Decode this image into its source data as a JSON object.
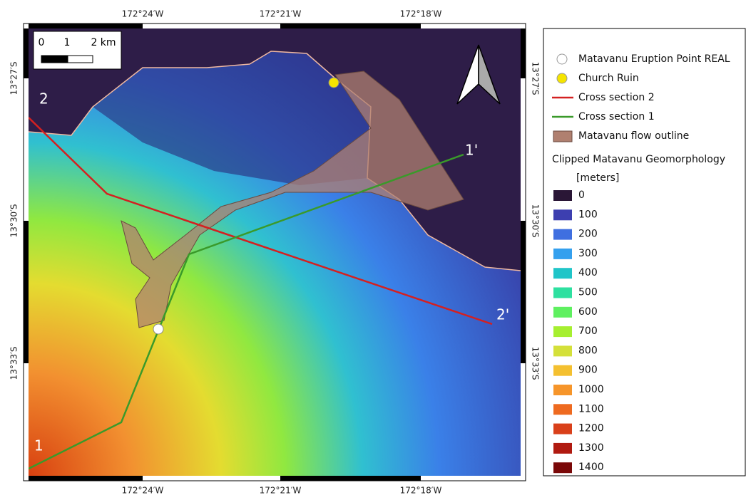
{
  "scale_bar": {
    "labels": [
      "0",
      "1",
      "2 km"
    ]
  },
  "graticule": {
    "longitudes": [
      "172°24′W",
      "172°21′W",
      "172°18′W"
    ],
    "latitudes": [
      "13°27′S",
      "13°30′S",
      "13°33′S"
    ]
  },
  "map_labels": [
    "2",
    "1'",
    "2'",
    "1"
  ],
  "legend": {
    "items": [
      "Matavanu Eruption Point REAL",
      "Church Ruin",
      "Cross section 2",
      "Cross section 1",
      "Matavanu flow outline"
    ],
    "ramp_title": "Clipped Matavanu Geomorphology",
    "ramp_unit": "[meters]",
    "ramp": [
      {
        "label": "0",
        "color": "#2a1636"
      },
      {
        "label": "100",
        "color": "#3d3fb0"
      },
      {
        "label": "200",
        "color": "#3f6fe0"
      },
      {
        "label": "300",
        "color": "#34a0ee"
      },
      {
        "label": "400",
        "color": "#20c5c8"
      },
      {
        "label": "500",
        "color": "#2ee0a0"
      },
      {
        "label": "600",
        "color": "#5ff060"
      },
      {
        "label": "700",
        "color": "#a6ef30"
      },
      {
        "label": "800",
        "color": "#d4e03a"
      },
      {
        "label": "900",
        "color": "#f4c030"
      },
      {
        "label": "1000",
        "color": "#f6952a"
      },
      {
        "label": "1100",
        "color": "#ee6a20"
      },
      {
        "label": "1200",
        "color": "#d9401a"
      },
      {
        "label": "1300",
        "color": "#b01a10"
      },
      {
        "label": "1400",
        "color": "#7a0808"
      }
    ]
  }
}
